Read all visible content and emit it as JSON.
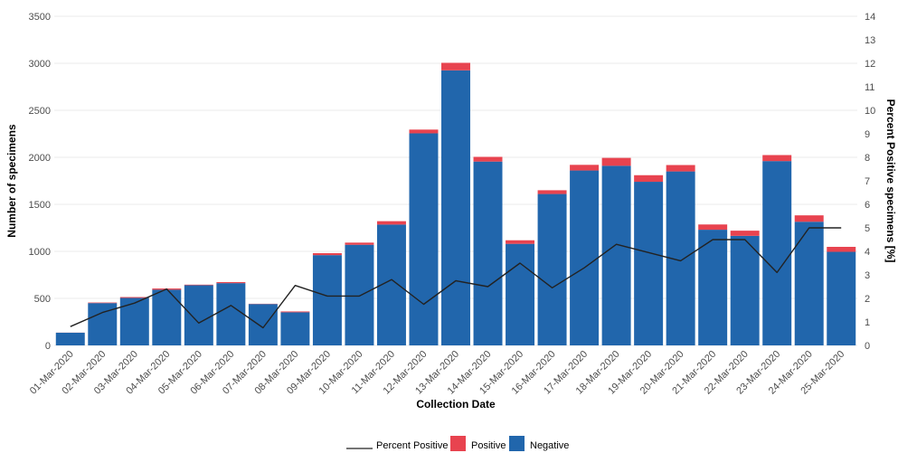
{
  "chart_data": {
    "type": "bar",
    "stacked": true,
    "xlabel": "Collection Date",
    "ylabel": "Number of specimens",
    "y2label": "Percent Positive specimens [%]",
    "ylim": [
      0,
      3500
    ],
    "y2lim": [
      0,
      14
    ],
    "yticks": [
      "0",
      "500",
      "1000",
      "1500",
      "2000",
      "2500",
      "3000",
      "3500"
    ],
    "y2ticks": [
      "0",
      "1",
      "2",
      "3",
      "4",
      "5",
      "6",
      "7",
      "8",
      "9",
      "10",
      "11",
      "12",
      "13",
      "14"
    ],
    "grid": true,
    "legend_position": "bottom",
    "categories": [
      "01-Mar-2020",
      "02-Mar-2020",
      "03-Mar-2020",
      "04-Mar-2020",
      "05-Mar-2020",
      "06-Mar-2020",
      "07-Mar-2020",
      "08-Mar-2020",
      "09-Mar-2020",
      "10-Mar-2020",
      "11-Mar-2020",
      "12-Mar-2020",
      "13-Mar-2020",
      "14-Mar-2020",
      "15-Mar-2020",
      "16-Mar-2020",
      "17-Mar-2020",
      "18-Mar-2020",
      "19-Mar-2020",
      "20-Mar-2020",
      "21-Mar-2020",
      "22-Mar-2020",
      "23-Mar-2020",
      "24-Mar-2020",
      "25-Mar-2020"
    ],
    "series": [
      {
        "name": "Negative",
        "color": "#2166ac",
        "values": [
          135,
          450,
          505,
          592,
          640,
          662,
          440,
          352,
          960,
          1070,
          1285,
          2255,
          2925,
          1955,
          1080,
          1610,
          1860,
          1910,
          1740,
          1850,
          1230,
          1165,
          1960,
          1315,
          995
        ]
      },
      {
        "name": "Positive",
        "color": "#e8434f",
        "values": [
          1,
          6,
          9,
          13,
          6,
          11,
          3,
          9,
          21,
          23,
          36,
          40,
          80,
          50,
          38,
          40,
          60,
          84,
          70,
          68,
          56,
          55,
          64,
          68,
          53
        ]
      },
      {
        "name": "Percent Positive",
        "type": "line",
        "axis": "right",
        "color": "#222222",
        "values": [
          0.8,
          1.4,
          1.8,
          2.4,
          0.95,
          1.7,
          0.75,
          2.55,
          2.1,
          2.1,
          2.8,
          1.75,
          2.75,
          2.5,
          3.5,
          2.45,
          3.3,
          4.3,
          3.95,
          3.6,
          4.5,
          4.5,
          3.1,
          5.0,
          5.0
        ]
      }
    ],
    "legend": [
      "Percent Positive",
      "Positive",
      "Negative"
    ]
  }
}
